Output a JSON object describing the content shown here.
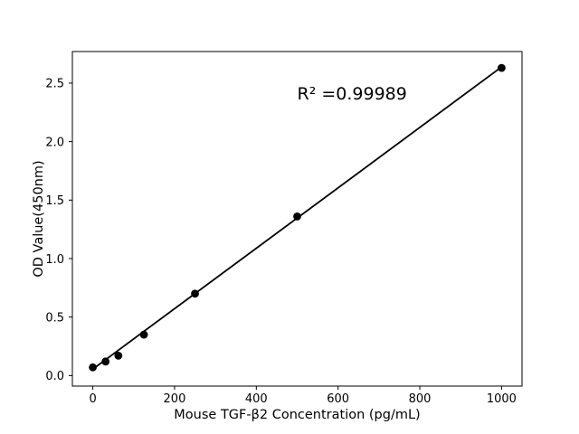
{
  "figure": {
    "background_color": "#ffffff"
  },
  "chart_data": {
    "type": "scatter",
    "title": "",
    "xlabel": "Mouse TGF-β2 Concentration (pg/mL)",
    "ylabel": "OD Value(450nm)",
    "series": [
      {
        "name": "standard-points",
        "x": [
          0,
          31.25,
          62.5,
          125,
          250,
          500,
          1000
        ],
        "y": [
          0.07,
          0.12,
          0.17,
          0.35,
          0.7,
          1.36,
          2.63
        ],
        "marker": "circle",
        "color": "#000000"
      }
    ],
    "fit_line": {
      "x": [
        0,
        1000
      ],
      "y": [
        0.055,
        2.638
      ],
      "color": "#000000"
    },
    "annotation": {
      "text": "R² =0.99989",
      "x": 500,
      "y": 2.36
    },
    "x_ticks": [
      "0",
      "200",
      "400",
      "600",
      "800",
      "1000"
    ],
    "y_ticks": [
      "0.0",
      "0.5",
      "1.0",
      "1.5",
      "2.0",
      "2.5"
    ],
    "xlim": [
      -50,
      1050
    ],
    "ylim": [
      -0.09,
      2.77
    ],
    "grid": false,
    "legend": "none",
    "axis_color": "#000000",
    "background_color": "#ffffff"
  }
}
